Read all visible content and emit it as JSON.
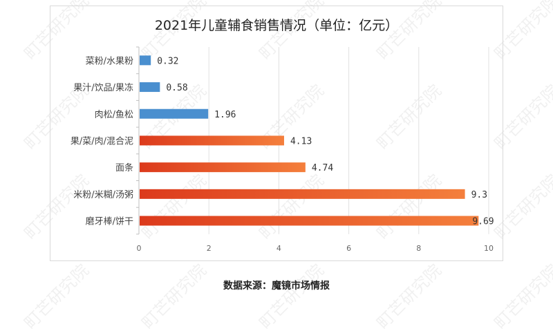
{
  "chart_data": {
    "type": "bar",
    "orientation": "horizontal",
    "title": "2021年儿童辅食销售情况（单位：亿元）",
    "categories": [
      "菜粉/水果粉",
      "果汁/饮品/果冻",
      "肉松/鱼松",
      "果/菜/肉/混合泥",
      "面条",
      "米粉/米糊/汤粥",
      "磨牙棒/饼干"
    ],
    "values": [
      0.32,
      0.58,
      1.96,
      4.13,
      4.74,
      9.3,
      9.69
    ],
    "value_labels": [
      "0.32",
      "0.58",
      "1.96",
      "4.13",
      "4.74",
      "9.3",
      "9.69"
    ],
    "xlim": [
      0,
      10
    ],
    "xticks": [
      "0",
      "2",
      "4",
      "6",
      "8",
      "10"
    ],
    "grid": true,
    "colors": {
      "small": "#4a8fcf",
      "large_start": "#dc3a1c",
      "large_end": "#f47f3c"
    }
  },
  "source": "数据来源：魔镜市场情报",
  "watermark": "町芒研究院"
}
